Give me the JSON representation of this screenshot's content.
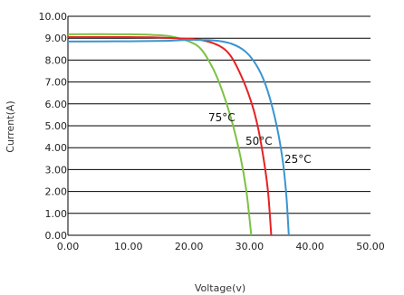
{
  "chart_data": {
    "type": "line",
    "xlabel": "Voltage(v)",
    "ylabel": "Current(A)",
    "xlim": [
      0,
      50
    ],
    "ylim": [
      0,
      10
    ],
    "x_ticks": [
      "0.00",
      "10.00",
      "20.00",
      "30.00",
      "40.00",
      "50.00"
    ],
    "y_ticks": [
      "0.00",
      "1.00",
      "2.00",
      "3.00",
      "4.00",
      "5.00",
      "6.00",
      "7.00",
      "8.00",
      "9.00",
      "10.00"
    ],
    "grid": "horizontal",
    "series": [
      {
        "name": "75°C",
        "color": "#7dc143",
        "points": [
          [
            0,
            9.18
          ],
          [
            10,
            9.18
          ],
          [
            14,
            9.15
          ],
          [
            17,
            9.08
          ],
          [
            20,
            8.85
          ],
          [
            22,
            8.5
          ],
          [
            24,
            7.6
          ],
          [
            25.5,
            6.6
          ],
          [
            27,
            5.3
          ],
          [
            28.5,
            3.6
          ],
          [
            29.5,
            2.0
          ],
          [
            30.3,
            0.0
          ]
        ]
      },
      {
        "name": "50°C",
        "color": "#e52222",
        "points": [
          [
            0,
            9.05
          ],
          [
            10,
            9.05
          ],
          [
            15,
            9.03
          ],
          [
            19,
            8.98
          ],
          [
            22,
            8.92
          ],
          [
            25,
            8.65
          ],
          [
            27,
            8.15
          ],
          [
            29,
            7.05
          ],
          [
            30.5,
            5.9
          ],
          [
            31.5,
            4.8
          ],
          [
            32.5,
            3.2
          ],
          [
            33.1,
            1.9
          ],
          [
            33.6,
            0.0
          ]
        ]
      },
      {
        "name": "25°C",
        "color": "#3a95d0",
        "points": [
          [
            0,
            8.85
          ],
          [
            10,
            8.86
          ],
          [
            16,
            8.88
          ],
          [
            20,
            8.92
          ],
          [
            24,
            8.9
          ],
          [
            27,
            8.75
          ],
          [
            29.5,
            8.35
          ],
          [
            31.5,
            7.6
          ],
          [
            33,
            6.6
          ],
          [
            34.5,
            5.0
          ],
          [
            35.5,
            3.4
          ],
          [
            36.1,
            1.8
          ],
          [
            36.5,
            0.0
          ]
        ]
      }
    ],
    "annotations": [
      "75°C",
      "50°C",
      "25°C"
    ]
  }
}
